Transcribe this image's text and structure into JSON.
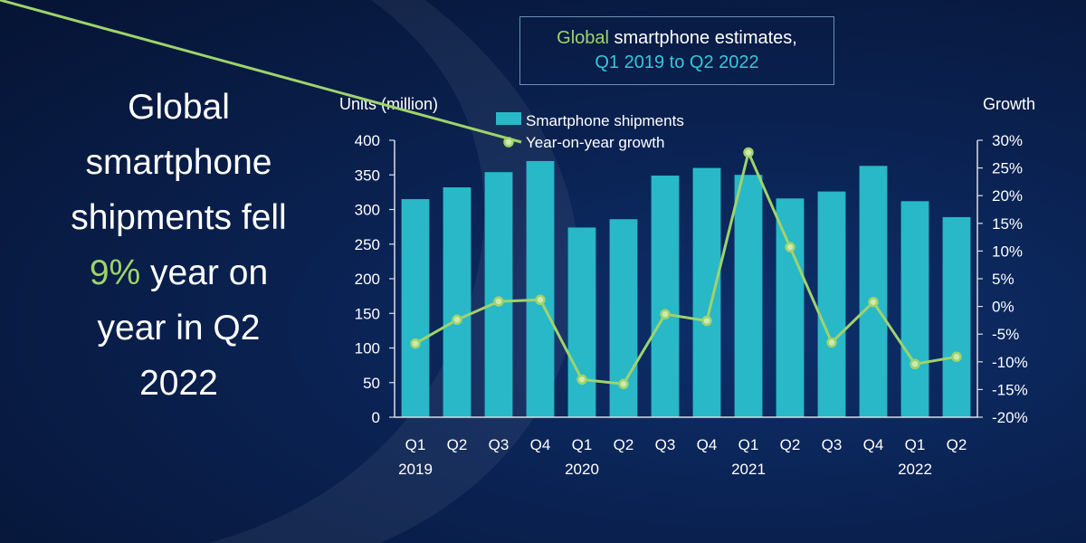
{
  "headline": {
    "line1": "Global",
    "line2": "smartphone",
    "line3": "shipments fell",
    "highlight": "9%",
    "line4_rest": " year on",
    "line5": "year in Q2",
    "line6": "2022"
  },
  "title": {
    "part1_highlight": "Global",
    "part1_rest": " smartphone estimates,",
    "line2": "Q1 2019 to Q2 2022"
  },
  "colors": {
    "bar": "#28b8c8",
    "line": "#9fd36b",
    "title_accent": "#35c7dc"
  },
  "chart_data": {
    "type": "bar+line",
    "y_left_label": "Units (million)",
    "y_right_label": "Growth",
    "ylim_left": [
      0,
      400
    ],
    "ylim_right": [
      -20,
      30
    ],
    "y_left_ticks": [
      "400",
      "350",
      "300",
      "250",
      "200",
      "150",
      "100",
      "50",
      "0"
    ],
    "y_right_ticks": [
      "30%",
      "25%",
      "20%",
      "15%",
      "10%",
      "5%",
      "0%",
      "-5%",
      "-10%",
      "-15%",
      "-20%"
    ],
    "categories": [
      "Q1",
      "Q2",
      "Q3",
      "Q4",
      "Q1",
      "Q2",
      "Q3",
      "Q4",
      "Q1",
      "Q2",
      "Q3",
      "Q4",
      "Q1",
      "Q2"
    ],
    "years": [
      {
        "label": "2019",
        "under_index": 0
      },
      {
        "label": "2020",
        "under_index": 4
      },
      {
        "label": "2021",
        "under_index": 8
      },
      {
        "label": "2022",
        "under_index": 12
      }
    ],
    "series": [
      {
        "name": "Smartphone shipments",
        "type": "bar",
        "axis": "left",
        "values": [
          315,
          332,
          354,
          370,
          274,
          286,
          349,
          360,
          350,
          316,
          326,
          363,
          312,
          289
        ]
      },
      {
        "name": "Year-on-year growth",
        "type": "line",
        "axis": "right",
        "values": [
          -6.7,
          -2.4,
          0.9,
          1.2,
          -13.2,
          -14.0,
          -1.4,
          -2.6,
          27.8,
          10.7,
          -6.5,
          0.8,
          -10.4,
          -9.1
        ]
      }
    ],
    "grid": false,
    "legend": "top-left"
  }
}
